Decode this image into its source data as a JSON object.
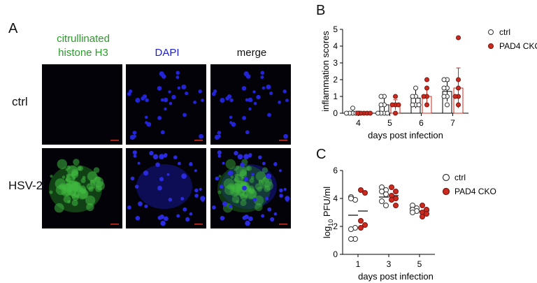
{
  "panel_a": {
    "letter": "A",
    "columns": [
      {
        "line1": "citrullinated",
        "line2": "histone H3",
        "color": "#2e9a2e"
      },
      {
        "line1": "",
        "line2": "DAPI",
        "color": "#2020c8"
      },
      {
        "line1": "",
        "line2": "merge",
        "color": "#111111"
      }
    ],
    "rows": [
      "ctrl",
      "HSV-2"
    ]
  },
  "panel_b": {
    "letter": "B",
    "legend": [
      {
        "label": "ctrl",
        "fill": "#ffffff",
        "stroke": "#333333"
      },
      {
        "label": "PAD4 CKO",
        "fill": "#cc2a1e",
        "stroke": "#7a1510"
      }
    ]
  },
  "panel_c": {
    "letter": "C",
    "legend": [
      {
        "label": "ctrl",
        "fill": "#ffffff",
        "stroke": "#333333"
      },
      {
        "label": "PAD4 CKO",
        "fill": "#cc2a1e",
        "stroke": "#7a1510"
      }
    ]
  },
  "chart_data": [
    {
      "type": "bar",
      "xlabel": "days post infection",
      "ylabel": "inflammation scores",
      "categories": [
        "4",
        "5",
        "6",
        "7"
      ],
      "ylim": [
        0,
        5
      ],
      "yticks": [
        "0",
        "1",
        "2",
        "3",
        "4",
        "5"
      ],
      "series": [
        {
          "name": "ctrl",
          "means": [
            0.1,
            0.5,
            0.9,
            1.3
          ],
          "sd": [
            0.15,
            0.45,
            0.6,
            0.6
          ],
          "points": [
            [
              0,
              0,
              0,
              0.3,
              0,
              0
            ],
            [
              0,
              0,
              0.5,
              1,
              0.5,
              0,
              1,
              0
            ],
            [
              0.5,
              1,
              1.5,
              1,
              0.5,
              0.5
            ],
            [
              1,
              1.5,
              2,
              1,
              0.5,
              1.5,
              2
            ]
          ]
        },
        {
          "name": "PAD4 CKO",
          "means": [
            0.0,
            0.5,
            1.0,
            1.5
          ],
          "sd": [
            0.0,
            0.3,
            0.5,
            1.2
          ],
          "points": [
            [
              0,
              0,
              0,
              0,
              0
            ],
            [
              0,
              0.5,
              1,
              0.5,
              0.5
            ],
            [
              0.5,
              1,
              1.5,
              2,
              1
            ],
            [
              0.5,
              1,
              1.5,
              2,
              4.5,
              1
            ]
          ]
        }
      ]
    },
    {
      "type": "scatter",
      "xlabel": "days post infection",
      "ylabel": "log10 PFU/ml",
      "ylabel_base": "log",
      "ylabel_sub": "10",
      "ylabel_rest": " PFU/ml",
      "categories": [
        "1",
        "3",
        "5"
      ],
      "ylim": [
        0,
        6
      ],
      "yticks": [
        "0",
        "2",
        "4",
        "6"
      ],
      "series": [
        {
          "name": "ctrl",
          "means": [
            2.8,
            4.1,
            3.3
          ],
          "points": [
            [
              4.1,
              3.9,
              4.0,
              1.9,
              1.8,
              1.1,
              1.1
            ],
            [
              4.8,
              4.6,
              4.5,
              4.3,
              3.8,
              3.5
            ],
            [
              3.5,
              3.3,
              3.2,
              3.1,
              3.0
            ]
          ]
        },
        {
          "name": "PAD4 CKO",
          "means": [
            3.1,
            4.2,
            3.1
          ],
          "points": [
            [
              4.6,
              4.4,
              2.4,
              2.1,
              1.9
            ],
            [
              4.8,
              4.5,
              4.2,
              4.0,
              3.9,
              3.5
            ],
            [
              3.5,
              3.2,
              3.0,
              2.9,
              2.7
            ]
          ]
        }
      ]
    }
  ]
}
